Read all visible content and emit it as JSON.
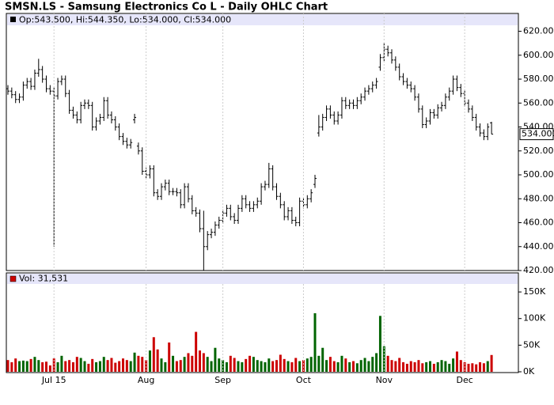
{
  "chart_data": [
    {
      "type": "ohlc",
      "title": "SMSN.LS - Samsung Electronics Co L - Daily OHLC Chart",
      "info": "Op:543.500, Hi:544.350, Lo:534.000, Cl:534.000",
      "color": "#000000",
      "open": [
        572,
        570,
        567,
        563,
        565,
        575,
        578,
        574,
        585,
        588,
        580,
        572,
        570,
        566,
        578,
        580,
        568,
        554,
        550,
        546,
        558,
        560,
        558,
        540,
        545,
        548,
        562,
        550,
        546,
        540,
        532,
        528,
        525,
        546,
        524,
        520,
        503,
        500,
        505,
        485,
        482,
        490,
        493,
        486,
        486,
        485,
        475,
        490,
        480,
        470,
        468,
        455,
        440,
        450,
        452,
        458,
        462,
        468,
        472,
        465,
        462,
        472,
        480,
        475,
        472,
        475,
        478,
        490,
        492,
        505,
        490,
        482,
        475,
        465,
        470,
        462,
        460,
        478,
        475,
        480,
        492,
        535,
        540,
        548,
        555,
        550,
        545,
        550,
        562,
        558,
        560,
        558,
        562,
        565,
        570,
        572,
        575,
        590,
        598,
        605,
        602,
        596,
        590,
        582,
        578,
        575,
        572,
        565,
        555,
        542,
        545,
        552,
        550,
        556,
        558,
        565,
        570,
        580,
        573,
        568,
        560,
        555,
        548,
        540,
        535,
        532,
        543.5
      ],
      "high": [
        575,
        573,
        570,
        568,
        578,
        581,
        581,
        588,
        597,
        591,
        583,
        575,
        573,
        581,
        583,
        583,
        571,
        557,
        553,
        561,
        563,
        563,
        561,
        548,
        551,
        565,
        565,
        553,
        549,
        543,
        535,
        531,
        530,
        551,
        527,
        523,
        506,
        508,
        508,
        488,
        493,
        496,
        496,
        489,
        489,
        488,
        493,
        493,
        483,
        473,
        471,
        470,
        453,
        455,
        461,
        465,
        471,
        475,
        475,
        468,
        475,
        483,
        483,
        478,
        478,
        481,
        493,
        495,
        510,
        508,
        493,
        485,
        478,
        473,
        473,
        465,
        481,
        481,
        483,
        488,
        500,
        550,
        551,
        558,
        558,
        553,
        553,
        565,
        565,
        563,
        563,
        565,
        568,
        573,
        575,
        578,
        581,
        601,
        610,
        608,
        605,
        599,
        593,
        585,
        581,
        578,
        575,
        568,
        558,
        548,
        555,
        555,
        559,
        561,
        568,
        573,
        583,
        583,
        576,
        571,
        563,
        558,
        551,
        543,
        538,
        543,
        544.35
      ],
      "low": [
        567,
        564,
        560,
        560,
        562,
        572,
        571,
        571,
        582,
        577,
        569,
        567,
        440,
        563,
        575,
        565,
        551,
        547,
        543,
        543,
        555,
        555,
        537,
        537,
        542,
        545,
        547,
        543,
        537,
        529,
        525,
        522,
        522,
        543,
        517,
        500,
        497,
        497,
        482,
        479,
        479,
        487,
        483,
        483,
        482,
        472,
        472,
        477,
        467,
        465,
        452,
        420,
        437,
        447,
        449,
        455,
        459,
        465,
        462,
        459,
        459,
        469,
        472,
        469,
        469,
        472,
        475,
        487,
        489,
        487,
        479,
        472,
        462,
        462,
        459,
        457,
        457,
        472,
        472,
        477,
        489,
        532,
        537,
        545,
        547,
        542,
        542,
        547,
        555,
        555,
        555,
        555,
        559,
        562,
        567,
        569,
        572,
        587,
        595,
        599,
        593,
        587,
        579,
        575,
        572,
        569,
        562,
        552,
        539,
        539,
        542,
        547,
        547,
        553,
        555,
        562,
        567,
        570,
        565,
        557,
        552,
        545,
        537,
        532,
        529,
        529,
        534
      ],
      "close": [
        570,
        567,
        563,
        565,
        575,
        578,
        574,
        585,
        588,
        580,
        572,
        570,
        566,
        578,
        580,
        568,
        554,
        550,
        546,
        558,
        560,
        558,
        540,
        545,
        548,
        562,
        550,
        546,
        540,
        532,
        528,
        525,
        527,
        548,
        520,
        503,
        500,
        505,
        485,
        482,
        490,
        493,
        486,
        486,
        485,
        475,
        490,
        480,
        470,
        468,
        455,
        440,
        450,
        452,
        458,
        462,
        468,
        472,
        465,
        462,
        472,
        480,
        475,
        472,
        475,
        478,
        490,
        492,
        505,
        490,
        482,
        475,
        465,
        470,
        462,
        460,
        478,
        475,
        480,
        485,
        497,
        540,
        548,
        555,
        550,
        545,
        550,
        562,
        558,
        560,
        558,
        562,
        565,
        570,
        572,
        575,
        578,
        598,
        605,
        602,
        596,
        590,
        582,
        578,
        575,
        572,
        565,
        555,
        542,
        545,
        552,
        550,
        556,
        558,
        565,
        570,
        580,
        573,
        568,
        560,
        555,
        548,
        540,
        535,
        532,
        540,
        534
      ],
      "last": {
        "value": 534,
        "label": "534.000"
      },
      "ylim": [
        420,
        625
      ],
      "yticks": [
        {
          "value": 420,
          "label": "420.000"
        },
        {
          "value": 440,
          "label": "440.000"
        },
        {
          "value": 460,
          "label": "460.000"
        },
        {
          "value": 480,
          "label": "480.000"
        },
        {
          "value": 500,
          "label": "500.000"
        },
        {
          "value": 520,
          "label": "520.000"
        },
        {
          "value": 540,
          "label": "540.000"
        },
        {
          "value": 560,
          "label": "560.000"
        },
        {
          "value": 580,
          "label": "580.000"
        },
        {
          "value": 600,
          "label": "600.000"
        },
        {
          "value": 620,
          "label": "620.000"
        }
      ]
    },
    {
      "type": "volume",
      "legend": "Vol: 31,531",
      "up_color": "#006400",
      "down_color": "#cc0000",
      "categories": [
        null,
        null,
        null,
        null,
        null,
        null,
        null,
        null,
        null,
        null,
        null,
        null,
        "Jul 15",
        null,
        null,
        null,
        null,
        null,
        null,
        null,
        null,
        null,
        null,
        null,
        null,
        null,
        null,
        null,
        null,
        null,
        null,
        null,
        null,
        null,
        null,
        null,
        "Aug",
        null,
        null,
        null,
        null,
        null,
        null,
        null,
        null,
        null,
        null,
        null,
        null,
        null,
        null,
        null,
        null,
        null,
        null,
        null,
        "Sep",
        null,
        null,
        null,
        null,
        null,
        null,
        null,
        null,
        null,
        null,
        null,
        null,
        null,
        null,
        null,
        null,
        null,
        null,
        null,
        null,
        "Oct",
        null,
        null,
        null,
        null,
        null,
        null,
        null,
        null,
        null,
        null,
        null,
        null,
        null,
        null,
        null,
        null,
        null,
        null,
        null,
        null,
        "Nov",
        null,
        null,
        null,
        null,
        null,
        null,
        null,
        null,
        null,
        null,
        null,
        null,
        null,
        null,
        null,
        null,
        null,
        null,
        null,
        null,
        "Dec",
        null,
        null,
        null,
        null,
        null,
        null,
        null
      ],
      "values": [
        22000,
        18000,
        25000,
        20000,
        21000,
        20000,
        24000,
        28000,
        22000,
        18000,
        19000,
        12000,
        25000,
        18000,
        30000,
        20000,
        22000,
        18000,
        28000,
        26000,
        20000,
        15000,
        24000,
        18000,
        20000,
        28000,
        22000,
        26000,
        17000,
        20000,
        25000,
        22000,
        20000,
        36000,
        30000,
        28000,
        22000,
        40000,
        65000,
        42000,
        25000,
        18000,
        55000,
        30000,
        20000,
        22000,
        28000,
        35000,
        30000,
        75000,
        40000,
        35000,
        28000,
        20000,
        45000,
        25000,
        22000,
        18000,
        30000,
        26000,
        20000,
        18000,
        24000,
        30000,
        28000,
        22000,
        20000,
        18000,
        25000,
        20000,
        22000,
        32000,
        24000,
        20000,
        18000,
        26000,
        20000,
        22000,
        25000,
        28000,
        110000,
        30000,
        45000,
        22000,
        28000,
        20000,
        18000,
        30000,
        25000,
        18000,
        20000,
        16000,
        22000,
        26000,
        20000,
        28000,
        35000,
        105000,
        48000,
        30000,
        22000,
        20000,
        26000,
        18000,
        15000,
        20000,
        18000,
        22000,
        16000,
        18000,
        20000,
        15000,
        18000,
        22000,
        20000,
        15000,
        25000,
        38000,
        22000,
        18000,
        15000,
        16000,
        14000,
        18000,
        16000,
        20000,
        31531
      ],
      "ylim": [
        0,
        165000
      ],
      "yticks": [
        {
          "value": 0,
          "label": "0K"
        },
        {
          "value": 50000,
          "label": "50K"
        },
        {
          "value": 100000,
          "label": "100K"
        },
        {
          "value": 150000,
          "label": "150K"
        }
      ]
    }
  ]
}
